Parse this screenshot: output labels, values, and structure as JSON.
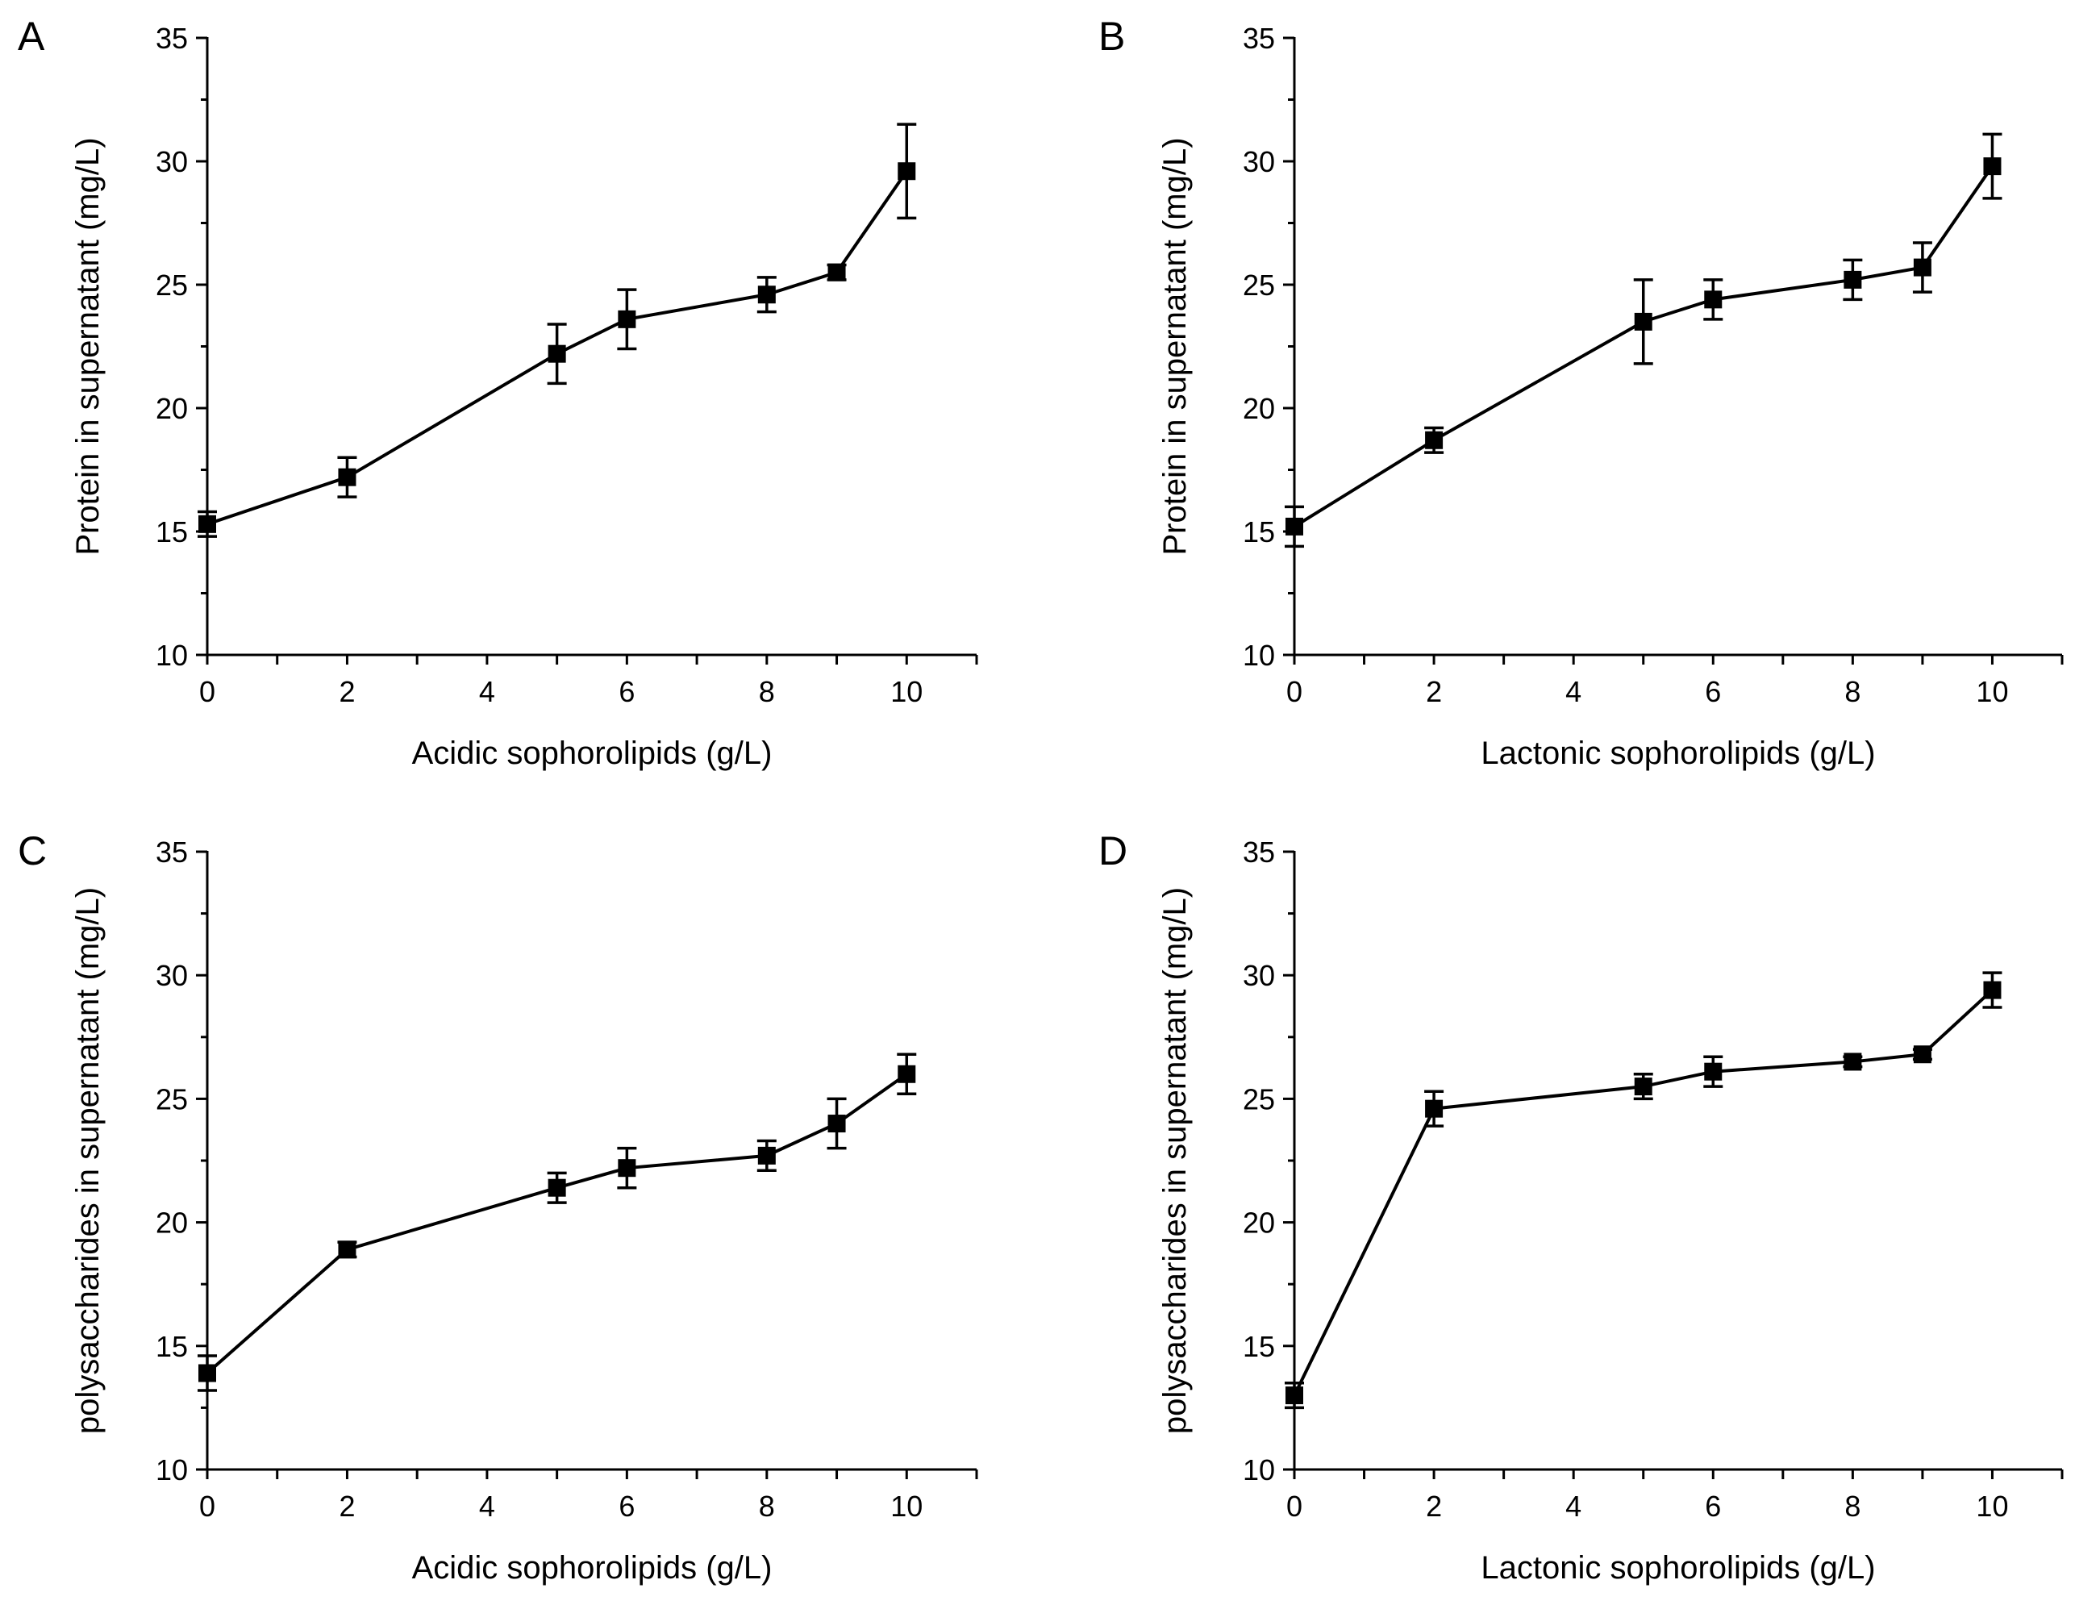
{
  "chart_data": [
    {
      "panel": "A",
      "type": "line",
      "xlabel": "Acidic sophorolipids (g/L)",
      "ylabel": "Protein in supernatant (mg/L)",
      "xlim": [
        0,
        11
      ],
      "ylim": [
        10,
        35
      ],
      "xticks": [
        0,
        2,
        4,
        6,
        8,
        10
      ],
      "yticks": [
        10,
        15,
        20,
        25,
        30,
        35
      ],
      "x": [
        0,
        2,
        5,
        6,
        8,
        9,
        10
      ],
      "y": [
        15.3,
        17.2,
        22.2,
        23.6,
        24.6,
        25.5,
        29.6
      ],
      "err": [
        0.5,
        0.8,
        1.2,
        1.2,
        0.7,
        0.3,
        1.9
      ]
    },
    {
      "panel": "B",
      "type": "line",
      "xlabel": "Lactonic sophorolipids (g/L)",
      "ylabel": "Protein in supernatant (mg/L)",
      "xlim": [
        0,
        11
      ],
      "ylim": [
        10,
        35
      ],
      "xticks": [
        0,
        2,
        4,
        6,
        8,
        10
      ],
      "yticks": [
        10,
        15,
        20,
        25,
        30,
        35
      ],
      "x": [
        0,
        2,
        5,
        6,
        8,
        9,
        10
      ],
      "y": [
        15.2,
        18.7,
        23.5,
        24.4,
        25.2,
        25.7,
        29.8
      ],
      "err": [
        0.8,
        0.5,
        1.7,
        0.8,
        0.8,
        1.0,
        1.3
      ]
    },
    {
      "panel": "C",
      "type": "line",
      "xlabel": "Acidic sophorolipids (g/L)",
      "ylabel": "polysaccharides in supernatant (mg/L)",
      "xlim": [
        0,
        11
      ],
      "ylim": [
        10,
        35
      ],
      "xticks": [
        0,
        2,
        4,
        6,
        8,
        10
      ],
      "yticks": [
        10,
        15,
        20,
        25,
        30,
        35
      ],
      "x": [
        0,
        2,
        5,
        6,
        8,
        9,
        10
      ],
      "y": [
        13.9,
        18.9,
        21.4,
        22.2,
        22.7,
        24.0,
        26.0
      ],
      "err": [
        0.7,
        0.3,
        0.6,
        0.8,
        0.6,
        1.0,
        0.8
      ]
    },
    {
      "panel": "D",
      "type": "line",
      "xlabel": "Lactonic sophorolipids (g/L)",
      "ylabel": "polysaccharides in supernatant (mg/L)",
      "xlim": [
        0,
        11
      ],
      "ylim": [
        10,
        35
      ],
      "xticks": [
        0,
        2,
        4,
        6,
        8,
        10
      ],
      "yticks": [
        10,
        15,
        20,
        25,
        30,
        35
      ],
      "x": [
        0,
        2,
        5,
        6,
        8,
        9,
        10
      ],
      "y": [
        13.0,
        24.6,
        25.5,
        26.1,
        26.5,
        26.8,
        29.4
      ],
      "err": [
        0.5,
        0.7,
        0.5,
        0.6,
        0.2,
        0.2,
        0.7
      ]
    }
  ]
}
